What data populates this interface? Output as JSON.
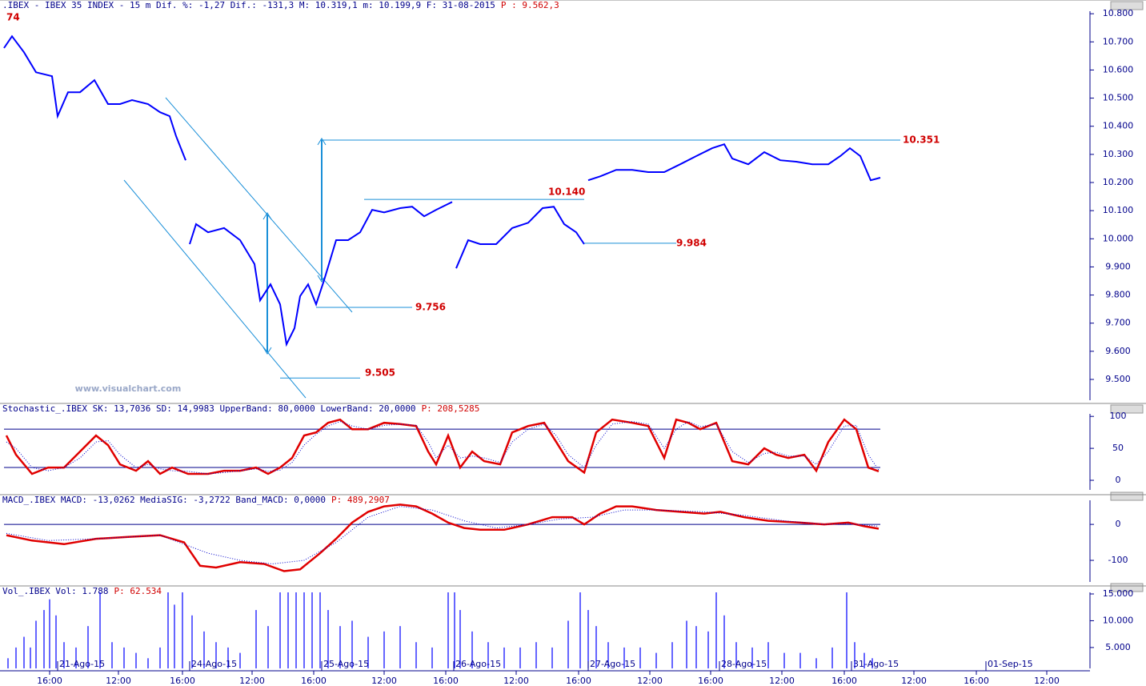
{
  "chart_data": [
    {
      "type": "line",
      "title": ".IBEX - IBEX 35 INDEX -  15 m Dif. %: -1,27 Dif.: -131,3 M: 10.319,1 m: 10.199,9 F: 31-08-2015",
      "title_extra": "P : 9.562,3",
      "corner_label": "74",
      "watermark": "www.visualchart.com",
      "color": "#0000ff",
      "xlim": [
        0,
        1360
      ],
      "ylim": [
        9426,
        10809
      ],
      "yticks": [
        {
          "value": 9500,
          "label": "9.500"
        },
        {
          "value": 9600,
          "label": "9.600"
        },
        {
          "value": 9700,
          "label": "9.700"
        },
        {
          "value": 9800,
          "label": "9.800"
        },
        {
          "value": 9900,
          "label": "9.900"
        },
        {
          "value": 10000,
          "label": "10.000"
        },
        {
          "value": 10100,
          "label": "10.100"
        },
        {
          "value": 10200,
          "label": "10.200"
        },
        {
          "value": 10300,
          "label": "10.300"
        },
        {
          "value": 10400,
          "label": "10.400"
        },
        {
          "value": 10500,
          "label": "10.500"
        },
        {
          "value": 10600,
          "label": "10.600"
        },
        {
          "value": 10700,
          "label": "10.700"
        },
        {
          "value": 10800,
          "label": "10.800"
        }
      ],
      "x": [
        5,
        15,
        30,
        45,
        65,
        72,
        85,
        100,
        118,
        135,
        150,
        165,
        185,
        200,
        212,
        220,
        232,
        234,
        237,
        245,
        260,
        280,
        300,
        318,
        325,
        338,
        350,
        358,
        368,
        375,
        385,
        395,
        405,
        420,
        435,
        450,
        465,
        480,
        500,
        515,
        530,
        545,
        565,
        567,
        570,
        585,
        600,
        620,
        640,
        660,
        678,
        692,
        705,
        720,
        730,
        732,
        735,
        750,
        770,
        790,
        810,
        830,
        850,
        870,
        890,
        905,
        915,
        935,
        955,
        975,
        995,
        1015,
        1035,
        1050,
        1062,
        1075,
        1088,
        1100
      ],
      "values": [
        10678,
        10720,
        10663,
        10592,
        10578,
        10436,
        10521,
        10521,
        10564,
        10479,
        10479,
        10493,
        10479,
        10450,
        10436,
        10365,
        10279,
        null,
        9981,
        10052,
        10023,
        10038,
        9995,
        9910,
        9781,
        9838,
        9767,
        9625,
        9682,
        9796,
        9838,
        9767,
        9853,
        9995,
        9995,
        10023,
        10103,
        10094,
        10109,
        10114,
        10080,
        10103,
        10131,
        null,
        9895,
        9995,
        9981,
        9981,
        10038,
        10057,
        10109,
        10114,
        10052,
        10023,
        9981,
        null,
        10208,
        10222,
        10245,
        10245,
        10237,
        10237,
        10265,
        10294,
        10322,
        10336,
        10285,
        10265,
        10308,
        10279,
        10274,
        10265,
        10265,
        10294,
        10322,
        10294,
        10208,
        10217
      ],
      "annotations": [
        {
          "value": 10351,
          "label": "10.351"
        },
        {
          "value": 10140,
          "label": "10.140"
        },
        {
          "value": 9984,
          "label": "9.984"
        },
        {
          "value": 9756,
          "label": "9.756"
        },
        {
          "value": 9505,
          "label": "9.505"
        }
      ]
    },
    {
      "type": "line",
      "title": "Stochastic_.IBEX SK: 13,7036 SD: 14,9983 UpperBand: 80,0000 LowerBand: 20,0000",
      "title_extra": "P: 208,5285",
      "xlim": [
        0,
        1360
      ],
      "ylim": [
        -15,
        104
      ],
      "yticks": [
        0,
        50,
        100
      ],
      "bands": [
        80,
        20
      ],
      "x": [
        8,
        20,
        40,
        60,
        80,
        100,
        120,
        135,
        150,
        170,
        185,
        200,
        215,
        235,
        260,
        280,
        300,
        320,
        335,
        350,
        365,
        380,
        395,
        410,
        425,
        440,
        460,
        480,
        500,
        520,
        535,
        545,
        560,
        575,
        590,
        605,
        625,
        640,
        660,
        680,
        695,
        710,
        730,
        745,
        765,
        790,
        810,
        830,
        845,
        860,
        875,
        895,
        915,
        935,
        955,
        970,
        985,
        1005,
        1020,
        1035,
        1055,
        1070,
        1085,
        1098
      ],
      "series": [
        {
          "color": "#e00000",
          "values": [
            70,
            40,
            10,
            20,
            20,
            45,
            70,
            55,
            25,
            15,
            30,
            10,
            20,
            10,
            10,
            15,
            15,
            20,
            10,
            20,
            35,
            70,
            75,
            90,
            95,
            80,
            80,
            90,
            88,
            85,
            45,
            25,
            70,
            20,
            45,
            30,
            25,
            75,
            85,
            90,
            60,
            30,
            12,
            75,
            95,
            90,
            85,
            35,
            95,
            90,
            80,
            90,
            30,
            25,
            50,
            40,
            35,
            40,
            15,
            60,
            95,
            80,
            20,
            14
          ]
        },
        {
          "color": "#0000cc",
          "values": [
            60,
            50,
            20,
            15,
            20,
            35,
            60,
            62,
            40,
            20,
            25,
            18,
            15,
            14,
            10,
            12,
            15,
            18,
            14,
            16,
            28,
            55,
            72,
            85,
            92,
            85,
            80,
            86,
            88,
            86,
            60,
            35,
            55,
            35,
            38,
            35,
            28,
            60,
            80,
            88,
            70,
            40,
            20,
            55,
            88,
            92,
            88,
            50,
            80,
            92,
            84,
            88,
            45,
            28,
            42,
            44,
            38,
            38,
            25,
            45,
            85,
            86,
            40,
            16
          ]
        }
      ]
    },
    {
      "type": "line",
      "title": "MACD_.IBEX MACD: -13,0262 MediaSIG: -3,2722 Band_MACD: 0,0000",
      "title_extra": "P: 489,2907",
      "xlim": [
        0,
        1360
      ],
      "ylim": [
        -160,
        67
      ],
      "yticks": [
        -100,
        0
      ],
      "bands": [
        0
      ],
      "series": [
        {
          "color": "#e00000",
          "x": [
            8,
            40,
            80,
            120,
            160,
            200,
            230,
            250,
            270,
            300,
            330,
            355,
            375,
            400,
            420,
            440,
            460,
            480,
            500,
            520,
            540,
            560,
            580,
            600,
            630,
            660,
            690,
            715,
            730,
            750,
            770,
            790,
            820,
            850,
            880,
            900,
            930,
            960,
            1000,
            1030,
            1060,
            1080,
            1098
          ],
          "values": [
            -30,
            -45,
            -55,
            -40,
            -35,
            -30,
            -50,
            -115,
            -120,
            -105,
            -110,
            -130,
            -125,
            -80,
            -40,
            5,
            35,
            50,
            55,
            50,
            30,
            5,
            -10,
            -15,
            -15,
            0,
            20,
            20,
            0,
            30,
            50,
            50,
            40,
            35,
            30,
            35,
            20,
            10,
            5,
            0,
            5,
            -5,
            -12
          ]
        },
        {
          "color": "#0000cc",
          "x": [
            8,
            60,
            120,
            200,
            260,
            300,
            340,
            380,
            420,
            460,
            500,
            540,
            580,
            620,
            660,
            700,
            740,
            780,
            820,
            880,
            930,
            980,
            1030,
            1060,
            1098
          ],
          "values": [
            -25,
            -45,
            -40,
            -30,
            -80,
            -100,
            -110,
            -100,
            -50,
            20,
            50,
            40,
            10,
            -10,
            0,
            15,
            20,
            40,
            40,
            35,
            25,
            10,
            0,
            2,
            -5
          ]
        }
      ]
    },
    {
      "type": "bar",
      "title": "Vol_.IBEX Vol: 1.788",
      "title_extra": "P: 62.534",
      "color": "#0000ff",
      "xlim": [
        0,
        1360
      ],
      "ylim": [
        1100,
        15300
      ],
      "yticks": [
        {
          "value": 5000,
          "label": "5.000"
        },
        {
          "value": 10000,
          "label": "10.000"
        },
        {
          "value": 15000,
          "label": "15.000"
        }
      ],
      "x": [
        10,
        20,
        30,
        38,
        45,
        55,
        62,
        70,
        80,
        95,
        110,
        125,
        140,
        155,
        170,
        185,
        200,
        210,
        218,
        228,
        240,
        255,
        270,
        285,
        300,
        320,
        335,
        350,
        360,
        370,
        380,
        390,
        400,
        410,
        425,
        440,
        460,
        480,
        500,
        520,
        540,
        560,
        568,
        575,
        590,
        610,
        630,
        650,
        670,
        690,
        710,
        725,
        735,
        745,
        760,
        780,
        800,
        820,
        840,
        858,
        870,
        885,
        895,
        905,
        920,
        940,
        960,
        980,
        1000,
        1020,
        1040,
        1058,
        1068,
        1080,
        1090
      ],
      "values": [
        3000,
        5000,
        7000,
        5000,
        10000,
        12000,
        14000,
        11000,
        6000,
        5000,
        9000,
        15300,
        6000,
        5000,
        4000,
        3000,
        5000,
        15300,
        13000,
        15300,
        11000,
        8000,
        6000,
        5000,
        4000,
        12000,
        9000,
        15300,
        15300,
        15300,
        15300,
        15300,
        15300,
        12000,
        9000,
        10000,
        7000,
        8000,
        9000,
        6000,
        5000,
        15300,
        15300,
        12000,
        8000,
        6000,
        5000,
        5000,
        6000,
        5000,
        10000,
        15300,
        12000,
        9000,
        6000,
        5000,
        5000,
        4000,
        6000,
        10000,
        9000,
        8000,
        15300,
        11000,
        6000,
        5000,
        6000,
        4000,
        4000,
        3000,
        5000,
        15300,
        6000,
        4000,
        3000
      ],
      "xticks": [
        {
          "value": 62,
          "label": "16:00"
        },
        {
          "value": 148,
          "label": "12:00"
        },
        {
          "value": 228,
          "label": "16:00"
        },
        {
          "value": 315,
          "label": "12:00"
        },
        {
          "value": 392,
          "label": "16:00"
        },
        {
          "value": 480,
          "label": "12:00"
        },
        {
          "value": 557,
          "label": "16:00"
        },
        {
          "value": 645,
          "label": "12:00"
        },
        {
          "value": 723,
          "label": "16:00"
        },
        {
          "value": 812,
          "label": "12:00"
        },
        {
          "value": 888,
          "label": "16:00"
        },
        {
          "value": 977,
          "label": "12:00"
        },
        {
          "value": 1055,
          "label": "16:00"
        },
        {
          "value": 1142,
          "label": "12:00"
        },
        {
          "value": 1220,
          "label": "16:00"
        },
        {
          "value": 1308,
          "label": "12:00"
        }
      ],
      "date_labels": [
        {
          "value": 72,
          "label": "21-Ago-15"
        },
        {
          "value": 237,
          "label": "24-Ago-15"
        },
        {
          "value": 402,
          "label": "25-Ago-15"
        },
        {
          "value": 567,
          "label": "26-Ago-15"
        },
        {
          "value": 735,
          "label": "27-Ago-15"
        },
        {
          "value": 899,
          "label": "28-Ago-15"
        },
        {
          "value": 1064,
          "label": "31-Ago-15"
        },
        {
          "value": 1232,
          "label": "01-Sep-15"
        }
      ]
    }
  ]
}
